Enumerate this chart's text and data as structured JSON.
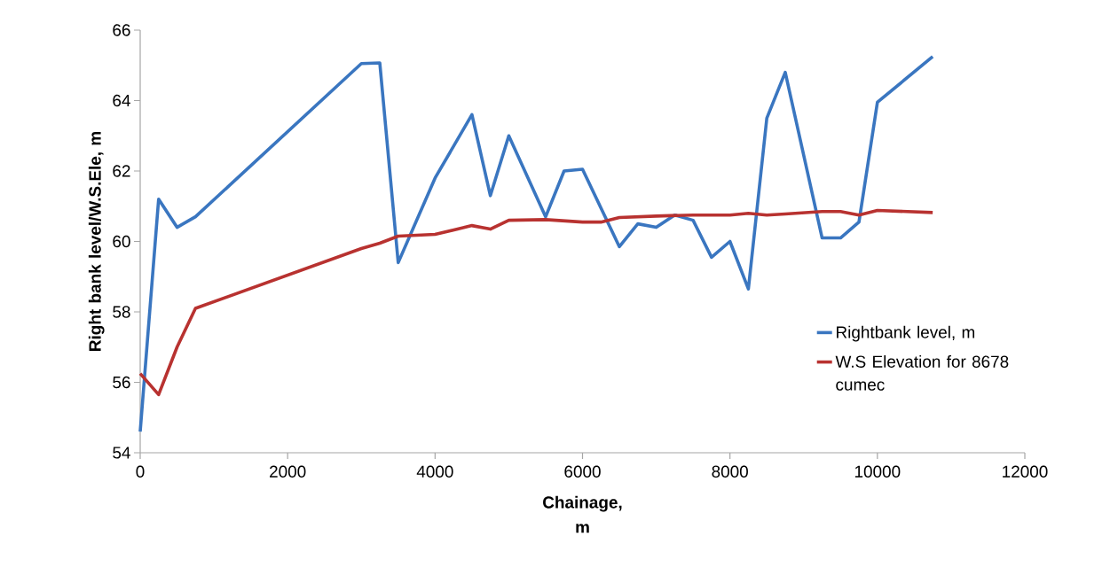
{
  "chart_data": {
    "type": "line",
    "xlabel": "Chainage, m",
    "ylabel": "Right bank level/W.S.Ele, m",
    "xlim": [
      0,
      12000
    ],
    "xticks": [
      0,
      2000,
      4000,
      6000,
      8000,
      10000,
      12000
    ],
    "ylim": [
      54,
      66
    ],
    "yticks": [
      54,
      56,
      58,
      60,
      62,
      64,
      66
    ],
    "grid": false,
    "legend": "right",
    "marker": "none",
    "line_style": "solid",
    "series": [
      {
        "name": "Rightbank level, m",
        "color": "#3a76c0",
        "x": [
          0,
          250,
          500,
          750,
          3000,
          3250,
          3500,
          4000,
          4500,
          4750,
          5000,
          5500,
          5750,
          6000,
          6500,
          6750,
          7000,
          7250,
          7500,
          7750,
          8000,
          8250,
          8500,
          8750,
          9250,
          9500,
          9750,
          10000,
          10750
        ],
        "values": [
          54.6,
          61.2,
          60.4,
          60.7,
          65.05,
          65.07,
          59.4,
          61.8,
          63.6,
          61.3,
          63.0,
          60.7,
          62.0,
          62.05,
          59.85,
          60.5,
          60.4,
          60.75,
          60.6,
          59.55,
          60.0,
          58.65,
          63.5,
          64.8,
          60.1,
          60.1,
          60.55,
          63.95,
          65.25
        ]
      },
      {
        "name": "W.S Elevation for 8678 cumec",
        "color": "#b83230",
        "x": [
          0,
          250,
          500,
          750,
          3000,
          3250,
          3500,
          4000,
          4500,
          4750,
          5000,
          5500,
          6000,
          6250,
          6500,
          7000,
          7500,
          8000,
          8250,
          8500,
          8750,
          9250,
          9500,
          9750,
          10000,
          10750
        ],
        "values": [
          56.25,
          55.65,
          57.0,
          58.1,
          59.8,
          59.95,
          60.15,
          60.2,
          60.45,
          60.35,
          60.6,
          60.62,
          60.55,
          60.55,
          60.68,
          60.72,
          60.75,
          60.75,
          60.8,
          60.75,
          60.78,
          60.85,
          60.85,
          60.75,
          60.88,
          60.82
        ]
      }
    ]
  }
}
